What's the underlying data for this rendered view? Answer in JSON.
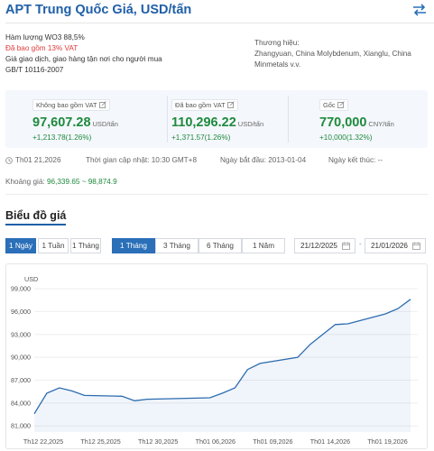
{
  "header": {
    "title": "APT Trung Quốc Giá, USD/tấn",
    "swap_icon": "swap-arrows-icon"
  },
  "specs": {
    "content": "Hàm lượng WO3 88,5%",
    "vat_note": "Đã bao gồm 13% VAT",
    "delivery": "Giá giao dịch, giao hàng tận nơi cho người mua",
    "standard": "GB/T 10116-2007"
  },
  "brand": {
    "label": "Thương hiệu:",
    "names": "Zhangyuan, China Molybdenum, Xianglu, China Minmetals v.v."
  },
  "prices": [
    {
      "label": "Không bao gồm VAT",
      "value": "97,607.28",
      "unit": "USD/tấn",
      "change": "+1,213.78(1.26%)"
    },
    {
      "label": "Đã bao gồm VAT",
      "value": "110,296.22",
      "unit": "USD/tấn",
      "change": "+1,371.57(1.26%)"
    },
    {
      "label": "Gốc",
      "value": "770,000",
      "unit": "CNY/tấn",
      "change": "+10,000(1.32%)"
    }
  ],
  "meta": {
    "date": "Th01 21,2026",
    "updated": "Thời gian cập nhật: 10:30 GMT+8",
    "start": "Ngày bắt đầu: 2013-01-04",
    "end": "Ngày kết thúc: --"
  },
  "range": {
    "label": "Khoảng giá:",
    "value": "96,339.65 ~ 98,874.9"
  },
  "chart_section": {
    "title": "Biểu đồ giá"
  },
  "period_buttons": [
    {
      "label": "1 Ngày",
      "active": true
    },
    {
      "label": "1 Tuần",
      "active": false
    },
    {
      "label": "1 Tháng",
      "active": false
    }
  ],
  "range_buttons": [
    {
      "label": "1 Tháng",
      "active": true
    },
    {
      "label": "3 Tháng",
      "active": false
    },
    {
      "label": "6 Tháng",
      "active": false
    },
    {
      "label": "1 Năm",
      "active": false
    }
  ],
  "date_range": {
    "from": "21/12/2025",
    "to": "21/01/2026",
    "separator": "-"
  },
  "colors": {
    "accent": "#2a6fb8",
    "positive": "#1e8a3c",
    "line": "#2b6cb0",
    "vat_red": "#e03a3a"
  },
  "chart_data": {
    "type": "area",
    "ylabel": "USD",
    "yticks": [
      81000,
      84000,
      87000,
      90000,
      93000,
      96000,
      99000
    ],
    "ylim": [
      80200,
      99600
    ],
    "xticks": [
      "Th12 22,2025",
      "Th12 25,2025",
      "Th12 30,2025",
      "Th01 06,2026",
      "Th01 09,2026",
      "Th01 14,2026",
      "Th01 19,2026"
    ],
    "grid": "horizontal",
    "points": [
      {
        "x": "2025-12-22",
        "y": 82600
      },
      {
        "x": "2025-12-23",
        "y": 85300
      },
      {
        "x": "2025-12-24",
        "y": 86000
      },
      {
        "x": "2025-12-25",
        "y": 85600
      },
      {
        "x": "2025-12-26",
        "y": 85000
      },
      {
        "x": "2025-12-29",
        "y": 84900
      },
      {
        "x": "2025-12-30",
        "y": 84300
      },
      {
        "x": "2025-12-31",
        "y": 84500
      },
      {
        "x": "2026-01-05",
        "y": 84700
      },
      {
        "x": "2026-01-06",
        "y": 85300
      },
      {
        "x": "2026-01-07",
        "y": 86000
      },
      {
        "x": "2026-01-08",
        "y": 88400
      },
      {
        "x": "2026-01-09",
        "y": 89200
      },
      {
        "x": "2026-01-12",
        "y": 90000
      },
      {
        "x": "2026-01-13",
        "y": 91700
      },
      {
        "x": "2026-01-14",
        "y": 93000
      },
      {
        "x": "2026-01-15",
        "y": 94300
      },
      {
        "x": "2026-01-16",
        "y": 94400
      },
      {
        "x": "2026-01-19",
        "y": 95700
      },
      {
        "x": "2026-01-20",
        "y": 96400
      },
      {
        "x": "2026-01-21",
        "y": 97607.28
      }
    ]
  }
}
